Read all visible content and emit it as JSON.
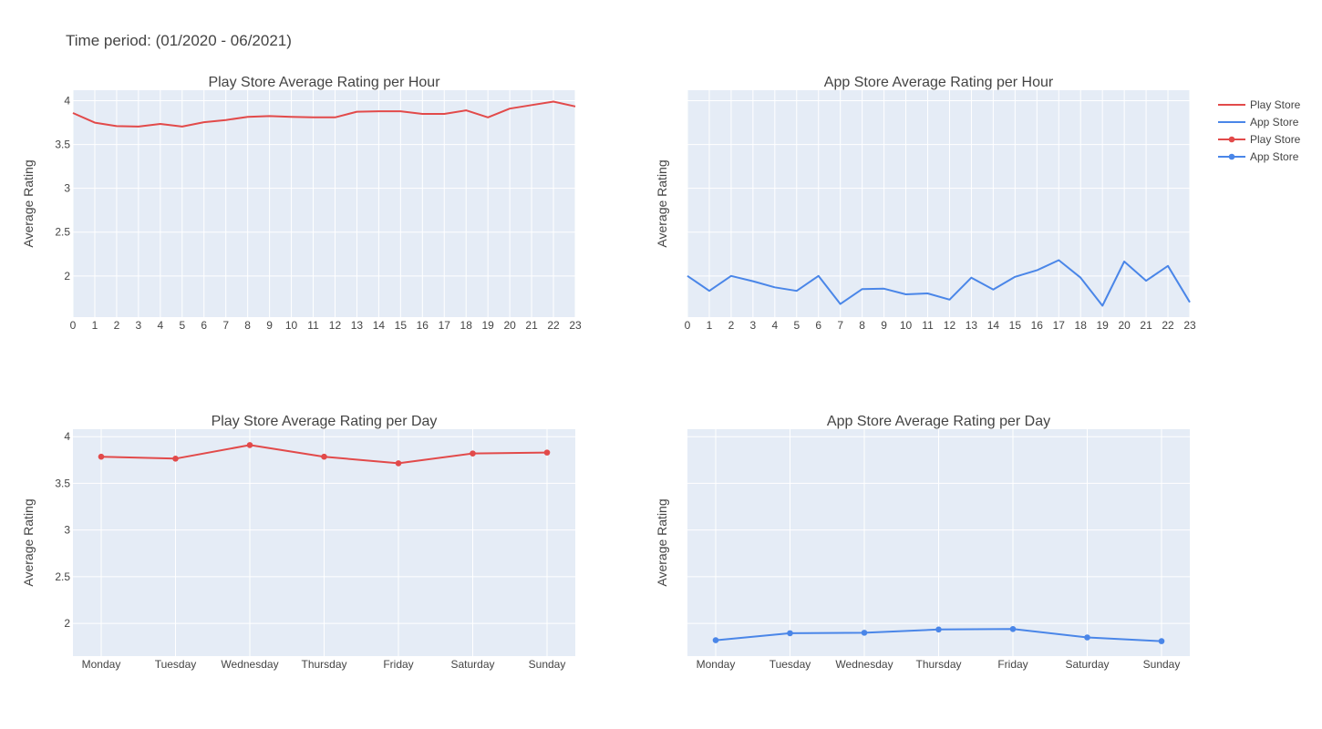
{
  "page": {
    "title": "Time period: (01/2020 - 06/2021)"
  },
  "colors": {
    "play": "#e24a4a",
    "app": "#4a86e8",
    "plot_bg": "#e5ecf6",
    "grid": "#ffffff"
  },
  "legend": {
    "items": [
      {
        "label": "Play Store",
        "color": "#e24a4a",
        "marker": false
      },
      {
        "label": "App Store",
        "color": "#4a86e8",
        "marker": false
      },
      {
        "label": "Play Store",
        "color": "#e24a4a",
        "marker": true
      },
      {
        "label": "App Store",
        "color": "#4a86e8",
        "marker": true
      }
    ]
  },
  "chart_data": [
    {
      "id": "play-hour",
      "type": "line",
      "title": "Play Store Average Rating per Hour",
      "ylabel": "Average Rating",
      "xlabel": "",
      "x": [
        "0",
        "1",
        "2",
        "3",
        "4",
        "5",
        "6",
        "7",
        "8",
        "9",
        "10",
        "11",
        "12",
        "13",
        "14",
        "15",
        "16",
        "17",
        "18",
        "19",
        "20",
        "21",
        "22",
        "23"
      ],
      "y": [
        3.86,
        3.75,
        3.71,
        3.705,
        3.735,
        3.705,
        3.755,
        3.78,
        3.815,
        3.825,
        3.815,
        3.81,
        3.81,
        3.875,
        3.88,
        3.88,
        3.85,
        3.85,
        3.89,
        3.81,
        3.91,
        3.95,
        3.99,
        3.935
      ],
      "ylim": [
        1.53,
        4.12
      ],
      "yticks": [
        2,
        2.5,
        3,
        3.5,
        4
      ],
      "ytick_labels": [
        "2",
        "2.5",
        "3",
        "3.5",
        "4"
      ],
      "color": "#e24a4a",
      "markers": false
    },
    {
      "id": "app-hour",
      "type": "line",
      "title": "App Store Average Rating per Hour",
      "ylabel": "Average Rating",
      "xlabel": "",
      "x": [
        "0",
        "1",
        "2",
        "3",
        "4",
        "5",
        "6",
        "7",
        "8",
        "9",
        "10",
        "11",
        "12",
        "13",
        "14",
        "15",
        "16",
        "17",
        "18",
        "19",
        "20",
        "21",
        "22",
        "23"
      ],
      "y": [
        2.0,
        1.83,
        2.0,
        1.94,
        1.87,
        1.83,
        2.0,
        1.68,
        1.85,
        1.855,
        1.79,
        1.8,
        1.73,
        1.98,
        1.845,
        1.99,
        2.065,
        2.18,
        1.98,
        1.66,
        2.165,
        1.945,
        2.115,
        1.7
      ],
      "ylim": [
        1.53,
        4.12
      ],
      "yticks": [
        2,
        2.5,
        3,
        3.5,
        4
      ],
      "ytick_labels": [],
      "color": "#4a86e8",
      "markers": false
    },
    {
      "id": "play-day",
      "type": "line",
      "title": "Play Store Average Rating per Day",
      "ylabel": "Average Rating",
      "xlabel": "",
      "x": [
        "Monday",
        "Tuesday",
        "Wednesday",
        "Thursday",
        "Friday",
        "Saturday",
        "Sunday"
      ],
      "y": [
        3.785,
        3.765,
        3.91,
        3.785,
        3.715,
        3.82,
        3.83
      ],
      "ylim": [
        1.65,
        4.08
      ],
      "yticks": [
        2,
        2.5,
        3,
        3.5,
        4
      ],
      "ytick_labels": [
        "2",
        "2.5",
        "3",
        "3.5",
        "4"
      ],
      "color": "#e24a4a",
      "markers": true
    },
    {
      "id": "app-day",
      "type": "line",
      "title": "App Store Average Rating per Day",
      "ylabel": "Average Rating",
      "xlabel": "",
      "x": [
        "Monday",
        "Tuesday",
        "Wednesday",
        "Thursday",
        "Friday",
        "Saturday",
        "Sunday"
      ],
      "y": [
        1.82,
        1.895,
        1.9,
        1.935,
        1.94,
        1.85,
        1.81
      ],
      "ylim": [
        1.65,
        4.08
      ],
      "yticks": [
        2,
        2.5,
        3,
        3.5,
        4
      ],
      "ytick_labels": [],
      "color": "#4a86e8",
      "markers": true
    }
  ]
}
